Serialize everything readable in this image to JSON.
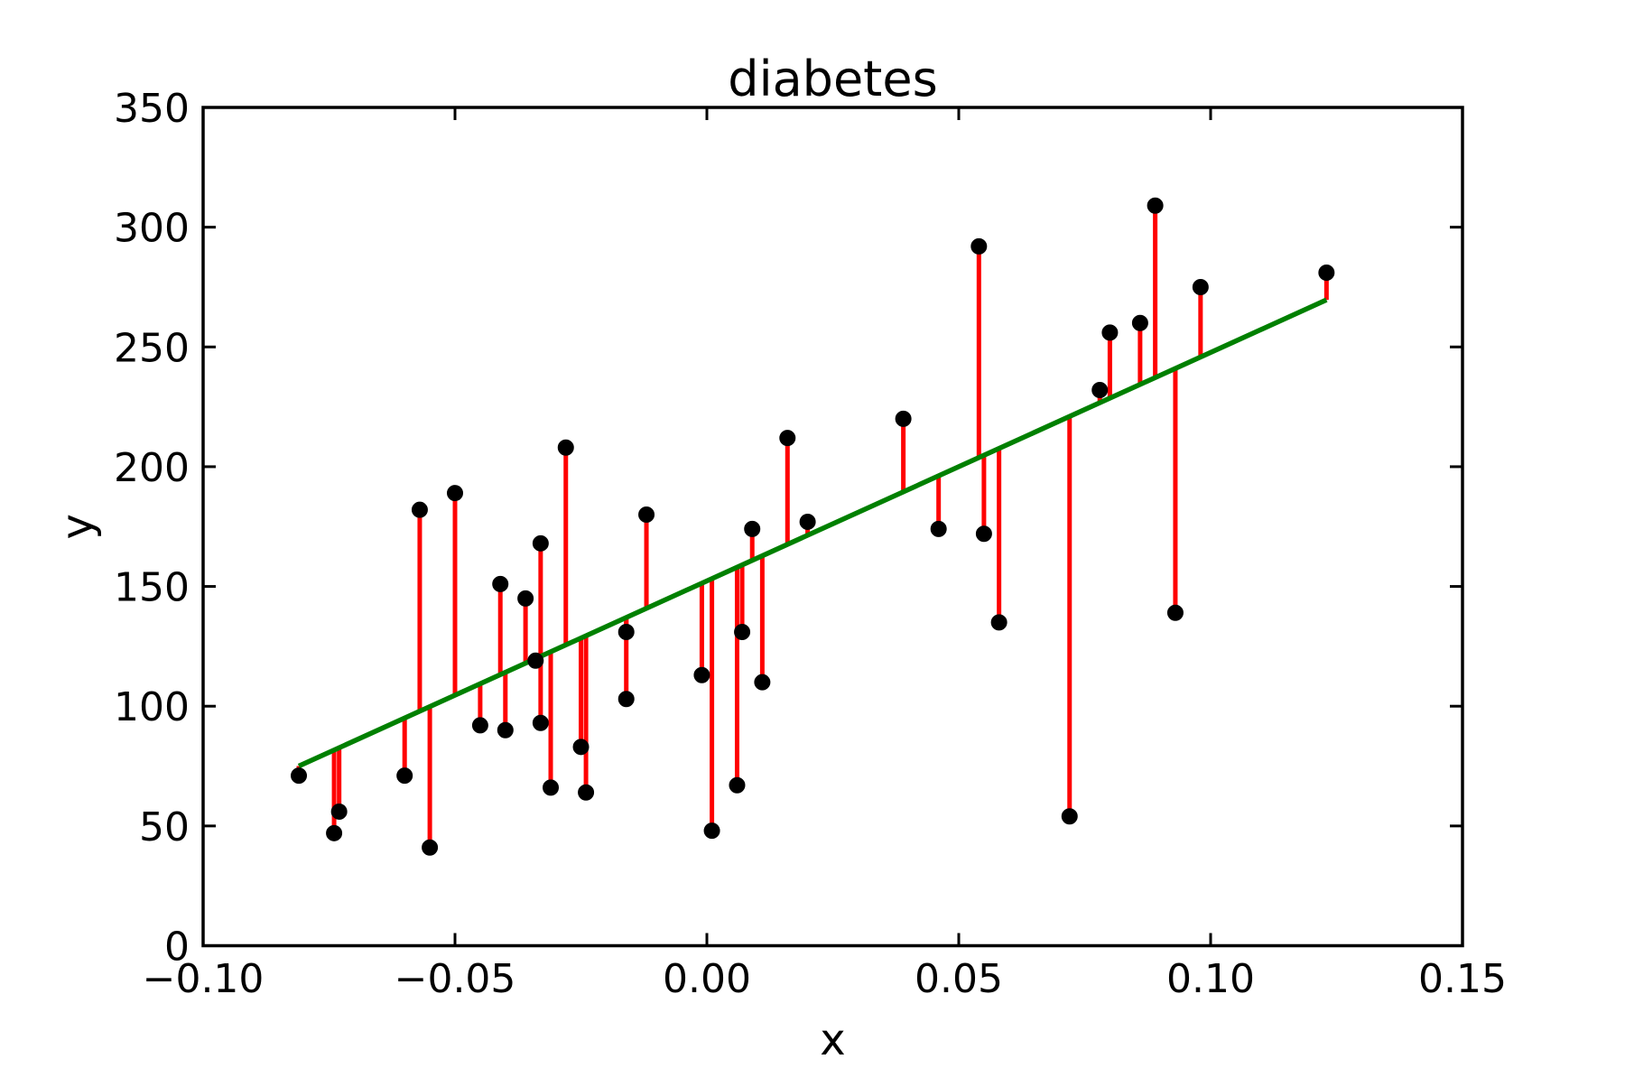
{
  "chart_data": {
    "type": "scatter",
    "title": "diabetes",
    "xlabel": "x",
    "ylabel": "y",
    "xlim": [
      -0.1,
      0.15
    ],
    "ylim": [
      0,
      350
    ],
    "grid": false,
    "legend": null,
    "background_color": "#ffffff",
    "spine_color": "#000000",
    "marker_color": "#000000",
    "residual_color": "#ff0000",
    "xticks": {
      "values": [
        -0.1,
        -0.05,
        0.0,
        0.05,
        0.1,
        0.15
      ],
      "labels": [
        "−0.10",
        "−0.05",
        "0.00",
        "0.05",
        "0.10",
        "0.15"
      ]
    },
    "yticks": {
      "values": [
        0,
        50,
        100,
        150,
        200,
        250,
        300,
        350
      ],
      "labels": [
        "0",
        "50",
        "100",
        "150",
        "200",
        "250",
        "300",
        "350"
      ]
    },
    "regression_line": {
      "slope": 954,
      "intercept": 152.3,
      "x_start": -0.081,
      "x_end": 0.123,
      "color": "#008000"
    },
    "points": [
      [
        -0.081,
        71
      ],
      [
        -0.074,
        47
      ],
      [
        -0.073,
        56
      ],
      [
        -0.06,
        71
      ],
      [
        -0.057,
        182
      ],
      [
        -0.055,
        41
      ],
      [
        -0.05,
        189
      ],
      [
        -0.045,
        92
      ],
      [
        -0.041,
        151
      ],
      [
        -0.04,
        90
      ],
      [
        -0.036,
        145
      ],
      [
        -0.034,
        119
      ],
      [
        -0.033,
        168
      ],
      [
        -0.033,
        93
      ],
      [
        -0.031,
        66
      ],
      [
        -0.028,
        208
      ],
      [
        -0.025,
        83
      ],
      [
        -0.024,
        64
      ],
      [
        -0.016,
        131
      ],
      [
        -0.016,
        103
      ],
      [
        -0.012,
        180
      ],
      [
        -0.001,
        113
      ],
      [
        0.001,
        48
      ],
      [
        0.006,
        67
      ],
      [
        0.007,
        131
      ],
      [
        0.009,
        174
      ],
      [
        0.011,
        110
      ],
      [
        0.016,
        212
      ],
      [
        0.02,
        177
      ],
      [
        0.039,
        220
      ],
      [
        0.046,
        174
      ],
      [
        0.054,
        292
      ],
      [
        0.055,
        172
      ],
      [
        0.058,
        135
      ],
      [
        0.072,
        54
      ],
      [
        0.078,
        232
      ],
      [
        0.08,
        256
      ],
      [
        0.086,
        260
      ],
      [
        0.089,
        309
      ],
      [
        0.093,
        139
      ],
      [
        0.098,
        275
      ],
      [
        0.123,
        281
      ]
    ]
  }
}
